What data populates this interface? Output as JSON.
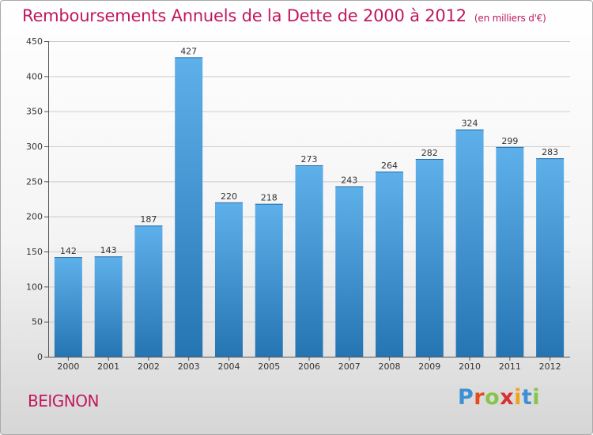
{
  "header": {
    "title": "Remboursements Annuels de la Dette de 2000 à 2012",
    "unit": "(en milliers d'€)"
  },
  "commune": "BEIGNON",
  "logo": {
    "text": "Proxiti",
    "letter_colors": [
      "#3d8fd6",
      "#e64c1b",
      "#86c54a",
      "#d93030",
      "#f0a21e",
      "#3d8fd6",
      "#86c54a"
    ]
  },
  "colors": {
    "title": "#c0185f",
    "bar_top": "#5eb0ea",
    "bar_bottom": "#2675b3",
    "grid": "#cccccc"
  },
  "chart_data": {
    "type": "bar",
    "title": "Remboursements Annuels de la Dette de 2000 à 2012",
    "xlabel": "",
    "ylabel": "",
    "categories": [
      "2000",
      "2001",
      "2002",
      "2003",
      "2004",
      "2005",
      "2006",
      "2007",
      "2008",
      "2009",
      "2010",
      "2011",
      "2012"
    ],
    "values": [
      142,
      143,
      187,
      427,
      220,
      218,
      273,
      243,
      264,
      282,
      324,
      299,
      283
    ],
    "ylim": [
      0,
      450
    ],
    "yticks": [
      0,
      50,
      100,
      150,
      200,
      250,
      300,
      350,
      400,
      450
    ],
    "grid": true,
    "data_labels": true
  }
}
